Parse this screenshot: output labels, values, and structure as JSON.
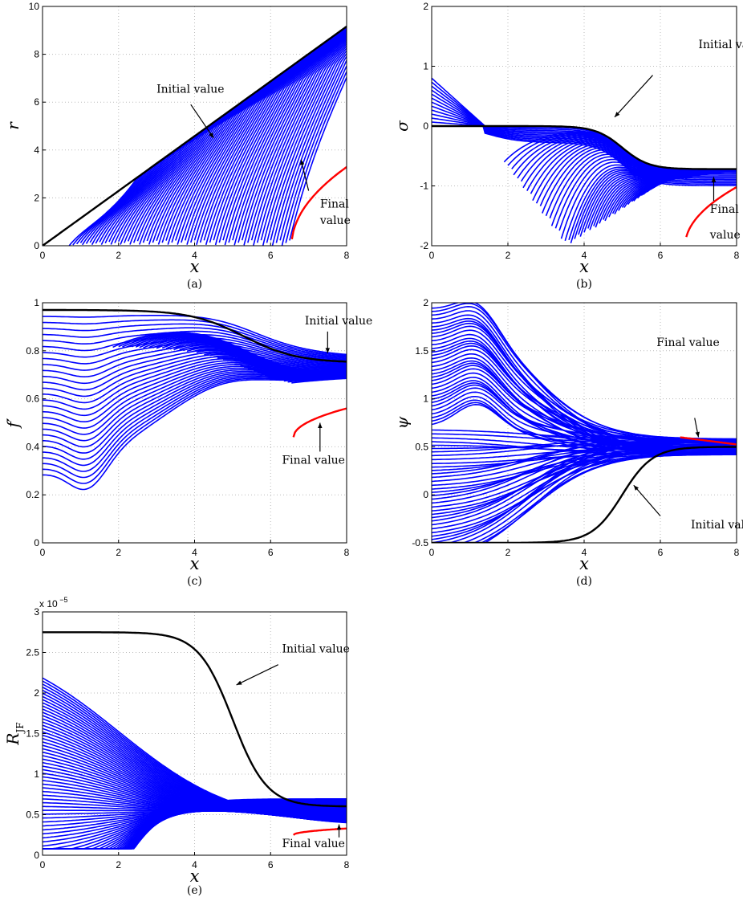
{
  "chart_data": [
    {
      "id": "a",
      "type": "line",
      "caption": "(a)",
      "xlabel": "x",
      "ylabel": "r",
      "xlim": [
        0,
        8
      ],
      "ylim": [
        0,
        10
      ],
      "xticks": [
        0,
        2,
        4,
        6,
        8
      ],
      "yticks": [
        0,
        2,
        4,
        6,
        8,
        10
      ],
      "grid": true,
      "colors": {
        "family": "#0000ff",
        "initial": "#000000",
        "final": "#ff0000"
      },
      "annotations": [
        {
          "text": "Initial value"
        },
        {
          "text": "Final",
          "text2": "value"
        }
      ]
    },
    {
      "id": "b",
      "type": "line",
      "caption": "(b)",
      "xlabel": "x",
      "ylabel": "σ",
      "xlim": [
        0,
        8
      ],
      "ylim": [
        -2,
        2
      ],
      "xticks": [
        0,
        2,
        4,
        6,
        8
      ],
      "yticks": [
        -2,
        -1,
        0,
        1,
        2
      ],
      "grid": true,
      "colors": {
        "family": "#0000ff",
        "initial": "#000000",
        "final": "#ff0000"
      },
      "annotations": [
        {
          "text": "Initial value"
        },
        {
          "text": "Final",
          "text2": "value"
        }
      ]
    },
    {
      "id": "c",
      "type": "line",
      "caption": "(c)",
      "xlabel": "x",
      "ylabel": "f′",
      "xlim": [
        0,
        8
      ],
      "ylim": [
        0,
        1
      ],
      "xticks": [
        0,
        2,
        4,
        6,
        8
      ],
      "yticks": [
        0,
        0.2,
        0.4,
        0.6,
        0.8,
        1
      ],
      "grid": true,
      "colors": {
        "family": "#0000ff",
        "initial": "#000000",
        "final": "#ff0000"
      },
      "annotations": [
        {
          "text": "Initial value"
        },
        {
          "text": "Final value"
        }
      ]
    },
    {
      "id": "d",
      "type": "line",
      "caption": "(d)",
      "xlabel": "x",
      "ylabel": "ψ",
      "xlim": [
        0,
        8
      ],
      "ylim": [
        -0.5,
        2
      ],
      "xticks": [
        0,
        2,
        4,
        6,
        8
      ],
      "yticks": [
        -0.5,
        0,
        0.5,
        1,
        1.5,
        2
      ],
      "grid": true,
      "colors": {
        "family": "#0000ff",
        "initial": "#000000",
        "final": "#ff0000"
      },
      "annotations": [
        {
          "text": "Final value"
        },
        {
          "text": "Initial value"
        }
      ]
    },
    {
      "id": "e",
      "type": "line",
      "caption": "(e)",
      "xlabel": "x",
      "ylabel": "R",
      "ylabel_sub": "JF",
      "xlim": [
        0,
        8
      ],
      "ylim": [
        0,
        3
      ],
      "xticks": [
        0,
        2,
        4,
        6,
        8
      ],
      "yticks": [
        0,
        0.5,
        1,
        1.5,
        2,
        2.5,
        3
      ],
      "y_multiplier": "x 10",
      "y_multiplier_exp": "−5",
      "grid": true,
      "colors": {
        "family": "#0000ff",
        "initial": "#000000",
        "final": "#ff0000"
      },
      "annotations": [
        {
          "text": "Initial value"
        },
        {
          "text": "Final value"
        }
      ]
    }
  ]
}
